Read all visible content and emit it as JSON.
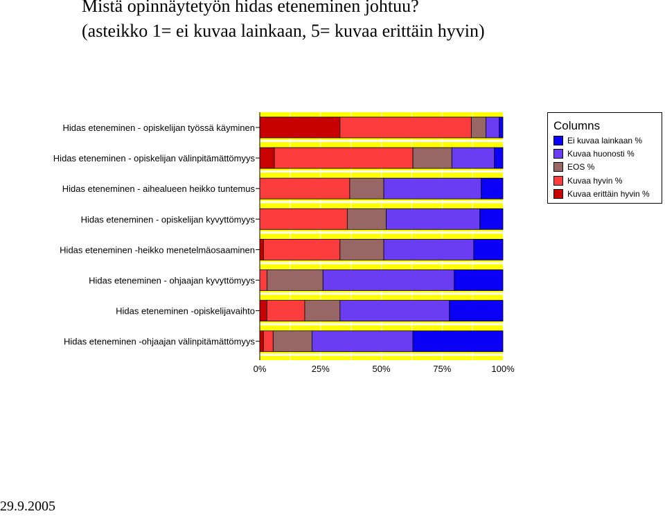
{
  "title": "Mistä opinnäytetyön hidas eteneminen johtuu?",
  "subtitle": "(asteikko 1= ei kuvaa lainkaan, 5= kuvaa erittäin hyvin)",
  "date": "29.9.2005",
  "legend": {
    "title": "Columns",
    "items": [
      {
        "label": "Ei kuvaa lainkaan %",
        "color": "#0a00f5"
      },
      {
        "label": "Kuvaa huonosti %",
        "color": "#6a3cf2"
      },
      {
        "label": "EOS %",
        "color": "#996666"
      },
      {
        "label": "Kuvaa  hyvin %",
        "color": "#fa3c3c"
      },
      {
        "label": "Kuvaa erittäin hyvin %",
        "color": "#c80000"
      }
    ]
  },
  "chart_data": {
    "type": "bar",
    "orientation": "horizontal",
    "stacked": true,
    "background_color": "#ffff00",
    "categories": [
      "Hidas eteneminen - opiskelijan työssä käyminen",
      "Hidas eteneminen - opiskelijan välinpitämättömyys",
      "Hidas eteneminen - aihealueen heikko tuntemus",
      "Hidas eteneminen - opiskelijan kyvyttömyys",
      "Hidas eteneminen -heikko menetelmäosaaminen",
      "Hidas eteneminen - ohjaajan kyvyttömyys",
      "Hidas eteneminen -opiskelijavaihto",
      "Hidas eteneminen  -ohjaajan välinpitämättömyys"
    ],
    "series": [
      {
        "name": "Kuvaa erittäin hyvin %",
        "color": "#c80000",
        "values": [
          33,
          6,
          0,
          0,
          1.5,
          0,
          3,
          1.5
        ]
      },
      {
        "name": "Kuvaa  hyvin %",
        "color": "#fa3c3c",
        "values": [
          54,
          57,
          37,
          36,
          31.5,
          3,
          15.5,
          4
        ]
      },
      {
        "name": "EOS %",
        "color": "#996666",
        "values": [
          6,
          16,
          14,
          16,
          18,
          23,
          14.5,
          16
        ]
      },
      {
        "name": "Kuvaa huonosti %",
        "color": "#6a3cf2",
        "values": [
          5.5,
          17.5,
          40,
          38.5,
          37,
          54,
          45,
          41.5
        ]
      },
      {
        "name": "Ei kuvaa lainkaan %",
        "color": "#0a00f5",
        "values": [
          1.5,
          3.5,
          9,
          9.5,
          12,
          20,
          22,
          37
        ]
      }
    ],
    "xlim": [
      0,
      100
    ],
    "xticks": [
      "0%",
      "25%",
      "50%",
      "75%",
      "100%"
    ]
  }
}
